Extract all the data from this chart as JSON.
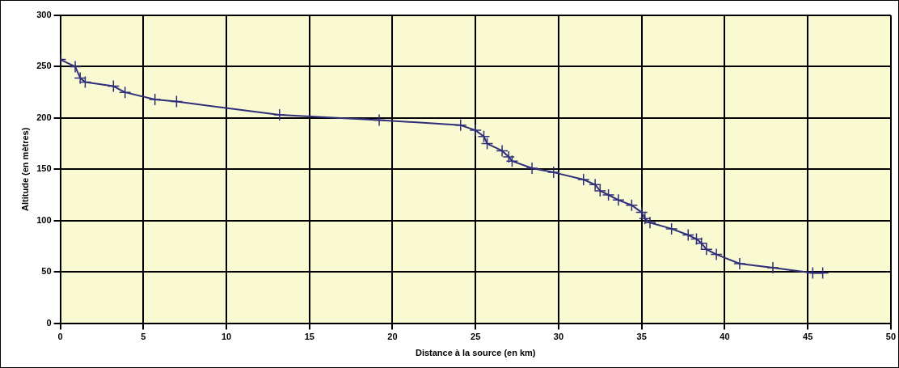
{
  "chart_data": {
    "type": "line",
    "xlabel": "Distance à la source (en km)",
    "ylabel": "Altitude (en mètres)",
    "x": [
      0,
      0.9,
      1.2,
      1.5,
      3.2,
      3.9,
      5.7,
      7.0,
      13.2,
      19.2,
      24.1,
      25.0,
      25.5,
      25.7,
      26.6,
      27.0,
      27.2,
      28.4,
      29.7,
      31.5,
      32.2,
      32.5,
      33.0,
      33.6,
      34.4,
      35.0,
      35.2,
      35.5,
      36.8,
      37.8,
      38.3,
      38.6,
      38.9,
      39.5,
      40.9,
      42.9,
      45.3,
      45.9
    ],
    "series": [
      {
        "color": "#2e2e7a",
        "values": [
          257,
          250,
          239,
          235,
          231,
          225,
          218,
          216,
          203,
          198,
          193,
          188,
          182,
          175,
          168,
          162,
          158,
          151,
          147,
          140,
          135,
          129,
          125,
          120,
          115,
          108,
          102,
          98,
          92,
          86,
          82,
          78,
          72,
          67,
          58,
          54,
          49,
          49
        ]
      }
    ],
    "xlim": [
      0,
      50
    ],
    "xticks": [
      0,
      5,
      10,
      15,
      20,
      25,
      30,
      35,
      40,
      45,
      50
    ],
    "ylim": [
      0,
      300
    ],
    "yticks": [
      0,
      50,
      100,
      150,
      200,
      250,
      300
    ],
    "grid": true,
    "legend": false,
    "marker": "cross",
    "line_style": "solid"
  }
}
